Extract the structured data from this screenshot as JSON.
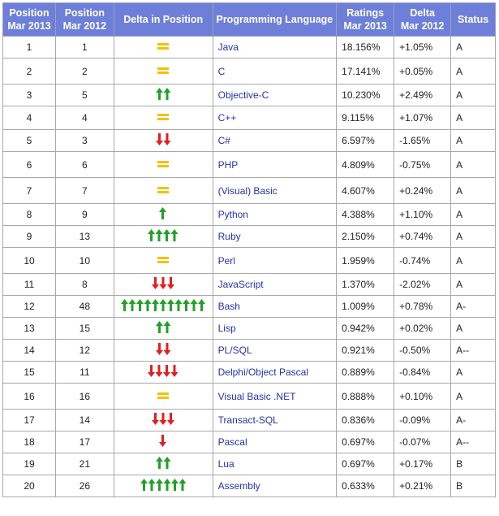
{
  "table": {
    "header": [
      [
        "Position",
        "Mar 2013"
      ],
      [
        "Position",
        "Mar 2012"
      ],
      [
        "Delta in Position"
      ],
      [
        "Programming Language"
      ],
      [
        "Ratings",
        "Mar 2013"
      ],
      [
        "Delta",
        "Mar 2012"
      ],
      [
        "Status"
      ]
    ],
    "rows": [
      [
        "1",
        "1",
        "",
        "Java",
        "18.156%",
        "+1.05%",
        "A"
      ],
      [
        "2",
        "2",
        "",
        "C",
        "17.141%",
        "+0.05%",
        "A"
      ],
      [
        "3",
        "5",
        "",
        "Objective-C",
        "10.230%",
        "+2.49%",
        "A"
      ],
      [
        "4",
        "4",
        "",
        "C++",
        "9.115%",
        "+1.07%",
        "A"
      ],
      [
        "5",
        "3",
        "",
        "C#",
        "6.597%",
        "-1.65%",
        "A"
      ],
      [
        "6",
        "6",
        "",
        "PHP",
        "4.809%",
        "-0.75%",
        "A"
      ],
      [
        "7",
        "7",
        "",
        "(Visual) Basic",
        "4.607%",
        "+0.24%",
        "A"
      ],
      [
        "8",
        "9",
        "",
        "Python",
        "4.388%",
        "+1.10%",
        "A"
      ],
      [
        "9",
        "13",
        "",
        "Ruby",
        "2.150%",
        "+0.74%",
        "A"
      ],
      [
        "10",
        "10",
        "",
        "Perl",
        "1.959%",
        "-0.74%",
        "A"
      ],
      [
        "11",
        "8",
        "",
        "JavaScript",
        "1.370%",
        "-2.02%",
        "A"
      ],
      [
        "12",
        "48",
        "",
        "Bash",
        "1.009%",
        "+0.78%",
        "A-"
      ],
      [
        "13",
        "15",
        "",
        "Lisp",
        "0.942%",
        "+0.02%",
        "A"
      ],
      [
        "14",
        "12",
        "",
        "PL/SQL",
        "0.921%",
        "-0.50%",
        "A--"
      ],
      [
        "15",
        "11",
        "",
        "Delphi/Object Pascal",
        "0.889%",
        "-0.84%",
        "A"
      ],
      [
        "16",
        "16",
        "",
        "Visual Basic .NET",
        "0.888%",
        "+0.10%",
        "A"
      ],
      [
        "17",
        "14",
        "",
        "Transact-SQL",
        "0.836%",
        "-0.09%",
        "A-"
      ],
      [
        "18",
        "17",
        "",
        "Pascal",
        "0.697%",
        "-0.07%",
        "A--"
      ],
      [
        "19",
        "21",
        "",
        "Lua",
        "0.697%",
        "+0.17%",
        "B"
      ],
      [
        "20",
        "26",
        "",
        "Assembly",
        "0.633%",
        "+0.21%",
        "B"
      ]
    ]
  }
}
